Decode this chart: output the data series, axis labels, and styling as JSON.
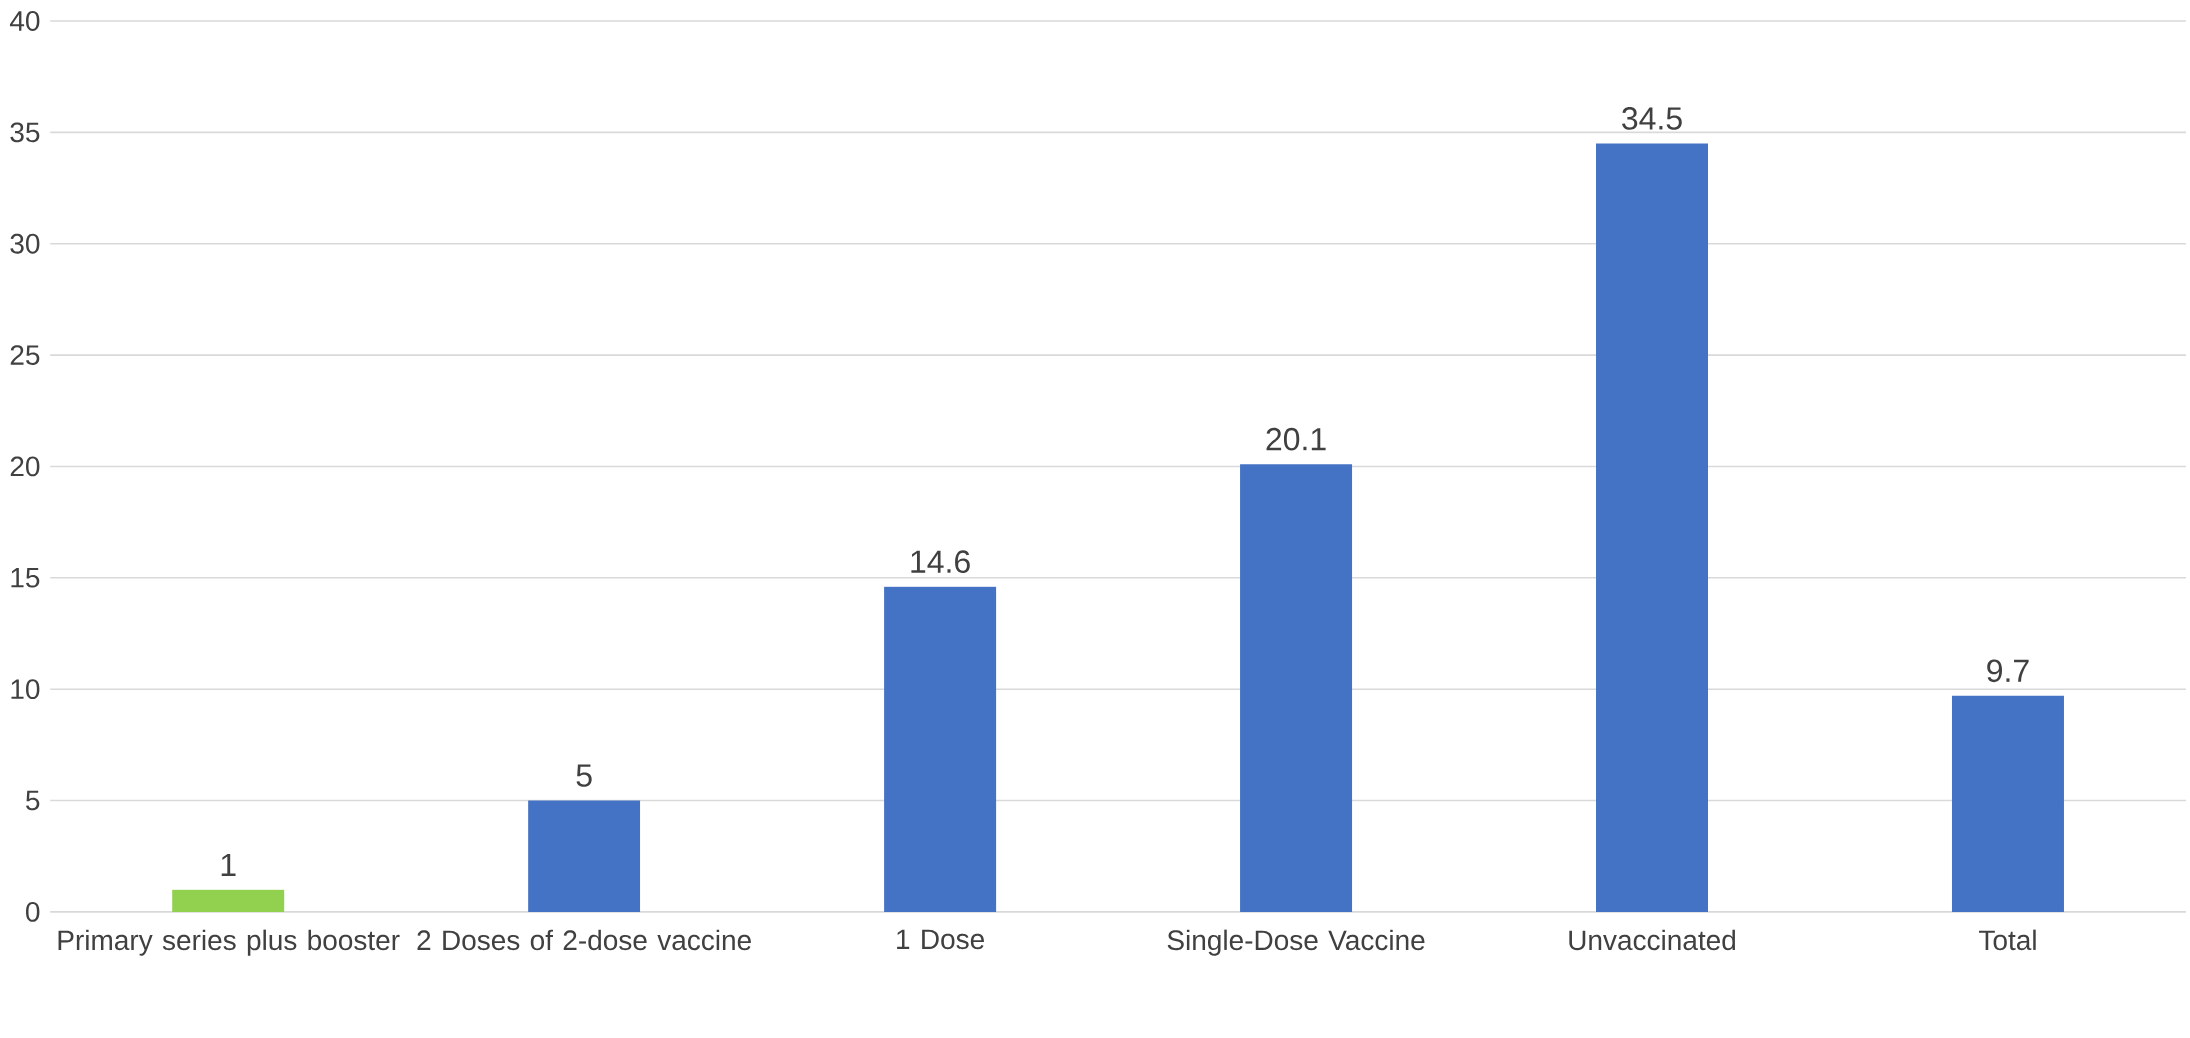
{
  "chart_data": {
    "type": "bar",
    "categories": [
      "Primary series plus booster",
      "2 Doses of 2-dose vaccine",
      "1 Dose",
      "Single-Dose Vaccine",
      "Unvaccinated",
      "Total"
    ],
    "values": [
      1,
      5,
      14.6,
      20.1,
      34.5,
      9.7
    ],
    "colors": [
      "#92d050",
      "#4472c4",
      "#4472c4",
      "#4472c4",
      "#4472c4",
      "#4472c4"
    ],
    "ylim": [
      0,
      40
    ],
    "yticks": [
      0,
      5,
      10,
      15,
      20,
      25,
      30,
      35,
      40
    ],
    "grid": "y",
    "data_labels": true
  }
}
